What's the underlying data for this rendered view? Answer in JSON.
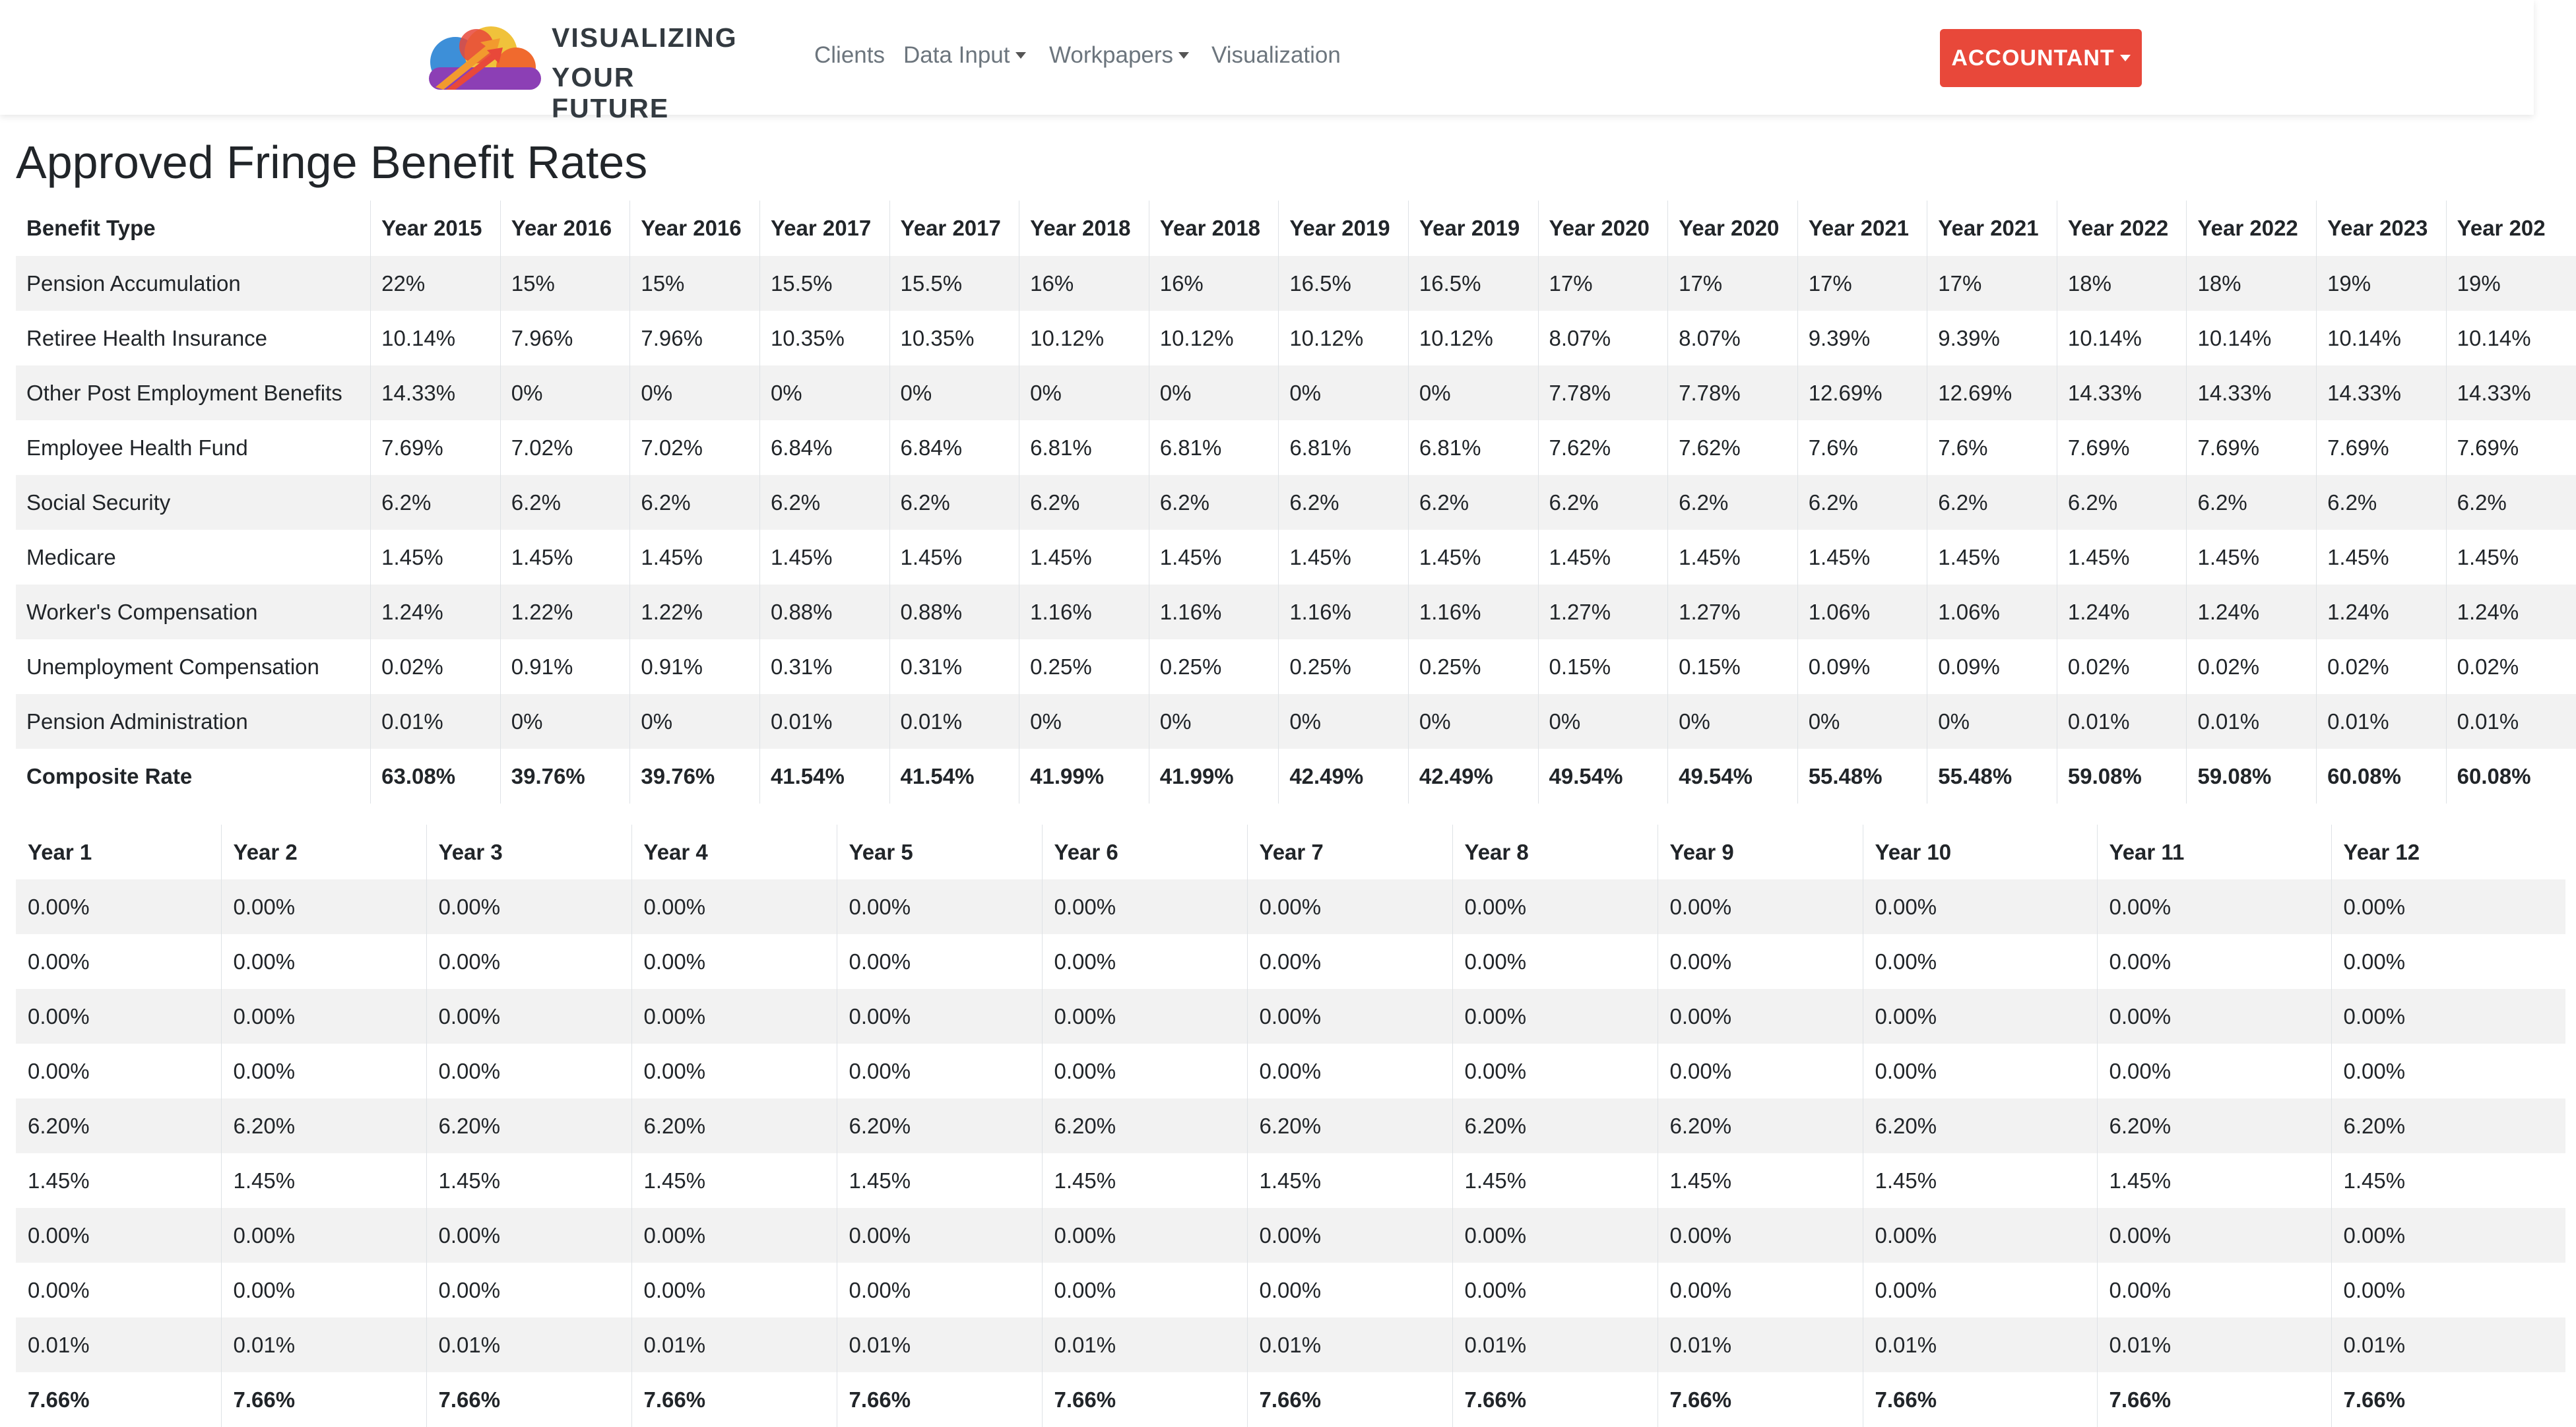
{
  "navbar": {
    "brand_line1": "VISUALIZING",
    "brand_line2": "YOUR FUTURE",
    "links": [
      "Clients",
      "Data Input",
      "Workpapers",
      "Visualization"
    ],
    "account_button": "ACCOUNTANT",
    "accent_color": "#e8483a"
  },
  "page_title": "Approved Fringe Benefit Rates",
  "rates_table": {
    "header": [
      "Benefit Type",
      "Year 2015",
      "Year 2016",
      "Year 2016",
      "Year 2017",
      "Year 2017",
      "Year 2018",
      "Year 2018",
      "Year 2019",
      "Year 2019",
      "Year 2020",
      "Year 2020",
      "Year 2021",
      "Year 2021",
      "Year 2022",
      "Year 2022",
      "Year 2023",
      "Year 202"
    ],
    "rows": [
      [
        "Pension Accumulation",
        "22%",
        "15%",
        "15%",
        "15.5%",
        "15.5%",
        "16%",
        "16%",
        "16.5%",
        "16.5%",
        "17%",
        "17%",
        "17%",
        "17%",
        "18%",
        "18%",
        "19%",
        "19%"
      ],
      [
        "Retiree Health Insurance",
        "10.14%",
        "7.96%",
        "7.96%",
        "10.35%",
        "10.35%",
        "10.12%",
        "10.12%",
        "10.12%",
        "10.12%",
        "8.07%",
        "8.07%",
        "9.39%",
        "9.39%",
        "10.14%",
        "10.14%",
        "10.14%",
        "10.14%"
      ],
      [
        "Other Post Employment Benefits",
        "14.33%",
        "0%",
        "0%",
        "0%",
        "0%",
        "0%",
        "0%",
        "0%",
        "0%",
        "7.78%",
        "7.78%",
        "12.69%",
        "12.69%",
        "14.33%",
        "14.33%",
        "14.33%",
        "14.33%"
      ],
      [
        "Employee Health Fund",
        "7.69%",
        "7.02%",
        "7.02%",
        "6.84%",
        "6.84%",
        "6.81%",
        "6.81%",
        "6.81%",
        "6.81%",
        "7.62%",
        "7.62%",
        "7.6%",
        "7.6%",
        "7.69%",
        "7.69%",
        "7.69%",
        "7.69%"
      ],
      [
        "Social Security",
        "6.2%",
        "6.2%",
        "6.2%",
        "6.2%",
        "6.2%",
        "6.2%",
        "6.2%",
        "6.2%",
        "6.2%",
        "6.2%",
        "6.2%",
        "6.2%",
        "6.2%",
        "6.2%",
        "6.2%",
        "6.2%",
        "6.2%"
      ],
      [
        "Medicare",
        "1.45%",
        "1.45%",
        "1.45%",
        "1.45%",
        "1.45%",
        "1.45%",
        "1.45%",
        "1.45%",
        "1.45%",
        "1.45%",
        "1.45%",
        "1.45%",
        "1.45%",
        "1.45%",
        "1.45%",
        "1.45%",
        "1.45%"
      ],
      [
        "Worker's Compensation",
        "1.24%",
        "1.22%",
        "1.22%",
        "0.88%",
        "0.88%",
        "1.16%",
        "1.16%",
        "1.16%",
        "1.16%",
        "1.27%",
        "1.27%",
        "1.06%",
        "1.06%",
        "1.24%",
        "1.24%",
        "1.24%",
        "1.24%"
      ],
      [
        "Unemployment Compensation",
        "0.02%",
        "0.91%",
        "0.91%",
        "0.31%",
        "0.31%",
        "0.25%",
        "0.25%",
        "0.25%",
        "0.25%",
        "0.15%",
        "0.15%",
        "0.09%",
        "0.09%",
        "0.02%",
        "0.02%",
        "0.02%",
        "0.02%"
      ],
      [
        "Pension Administration",
        "0.01%",
        "0%",
        "0%",
        "0.01%",
        "0.01%",
        "0%",
        "0%",
        "0%",
        "0%",
        "0%",
        "0%",
        "0%",
        "0%",
        "0.01%",
        "0.01%",
        "0.01%",
        "0.01%"
      ],
      [
        "Composite Rate",
        "63.08%",
        "39.76%",
        "39.76%",
        "41.54%",
        "41.54%",
        "41.99%",
        "41.99%",
        "42.49%",
        "42.49%",
        "49.54%",
        "49.54%",
        "55.48%",
        "55.48%",
        "59.08%",
        "59.08%",
        "60.08%",
        "60.08%"
      ]
    ]
  },
  "projection_table": {
    "header": [
      "Year 1",
      "Year 2",
      "Year 3",
      "Year 4",
      "Year 5",
      "Year 6",
      "Year 7",
      "Year 8",
      "Year 9",
      "Year 10",
      "Year 11",
      "Year 12"
    ],
    "rows": [
      [
        "0.00%",
        "0.00%",
        "0.00%",
        "0.00%",
        "0.00%",
        "0.00%",
        "0.00%",
        "0.00%",
        "0.00%",
        "0.00%",
        "0.00%",
        "0.00%"
      ],
      [
        "0.00%",
        "0.00%",
        "0.00%",
        "0.00%",
        "0.00%",
        "0.00%",
        "0.00%",
        "0.00%",
        "0.00%",
        "0.00%",
        "0.00%",
        "0.00%"
      ],
      [
        "0.00%",
        "0.00%",
        "0.00%",
        "0.00%",
        "0.00%",
        "0.00%",
        "0.00%",
        "0.00%",
        "0.00%",
        "0.00%",
        "0.00%",
        "0.00%"
      ],
      [
        "0.00%",
        "0.00%",
        "0.00%",
        "0.00%",
        "0.00%",
        "0.00%",
        "0.00%",
        "0.00%",
        "0.00%",
        "0.00%",
        "0.00%",
        "0.00%"
      ],
      [
        "6.20%",
        "6.20%",
        "6.20%",
        "6.20%",
        "6.20%",
        "6.20%",
        "6.20%",
        "6.20%",
        "6.20%",
        "6.20%",
        "6.20%",
        "6.20%"
      ],
      [
        "1.45%",
        "1.45%",
        "1.45%",
        "1.45%",
        "1.45%",
        "1.45%",
        "1.45%",
        "1.45%",
        "1.45%",
        "1.45%",
        "1.45%",
        "1.45%"
      ],
      [
        "0.00%",
        "0.00%",
        "0.00%",
        "0.00%",
        "0.00%",
        "0.00%",
        "0.00%",
        "0.00%",
        "0.00%",
        "0.00%",
        "0.00%",
        "0.00%"
      ],
      [
        "0.00%",
        "0.00%",
        "0.00%",
        "0.00%",
        "0.00%",
        "0.00%",
        "0.00%",
        "0.00%",
        "0.00%",
        "0.00%",
        "0.00%",
        "0.00%"
      ],
      [
        "0.01%",
        "0.01%",
        "0.01%",
        "0.01%",
        "0.01%",
        "0.01%",
        "0.01%",
        "0.01%",
        "0.01%",
        "0.01%",
        "0.01%",
        "0.01%"
      ],
      [
        "7.66%",
        "7.66%",
        "7.66%",
        "7.66%",
        "7.66%",
        "7.66%",
        "7.66%",
        "7.66%",
        "7.66%",
        "7.66%",
        "7.66%",
        "7.66%"
      ]
    ]
  }
}
